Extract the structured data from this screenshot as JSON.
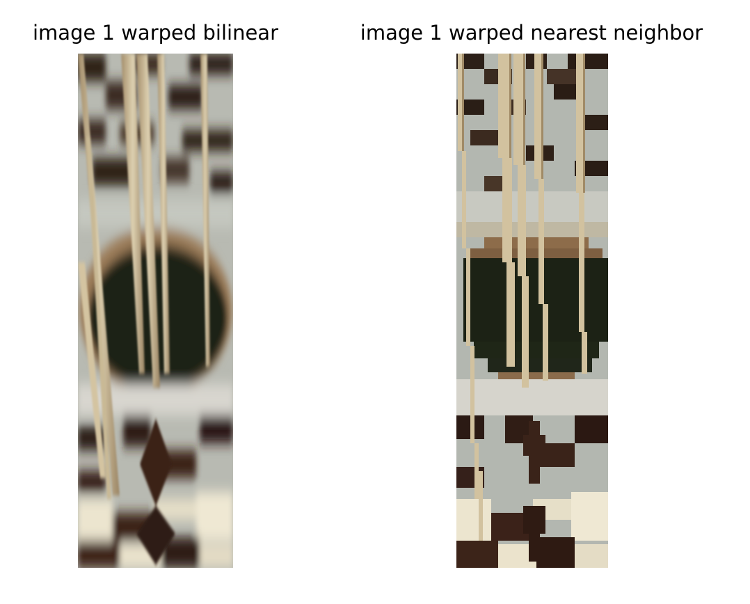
{
  "panels": [
    {
      "title": "image 1 warped bilinear",
      "image": "warped-weave-photo-smooth"
    },
    {
      "title": "image 1 warped nearest neighbor",
      "image": "warped-weave-photo-blocky"
    }
  ],
  "colors": {
    "light_tile": "#b9bdb6",
    "dark_tile": "#2b1a14",
    "cream_tile": "#e8e1cc",
    "basket_dark": "#1c2214",
    "stick": "#d4c4a1",
    "rim": "#8a6d4e"
  }
}
